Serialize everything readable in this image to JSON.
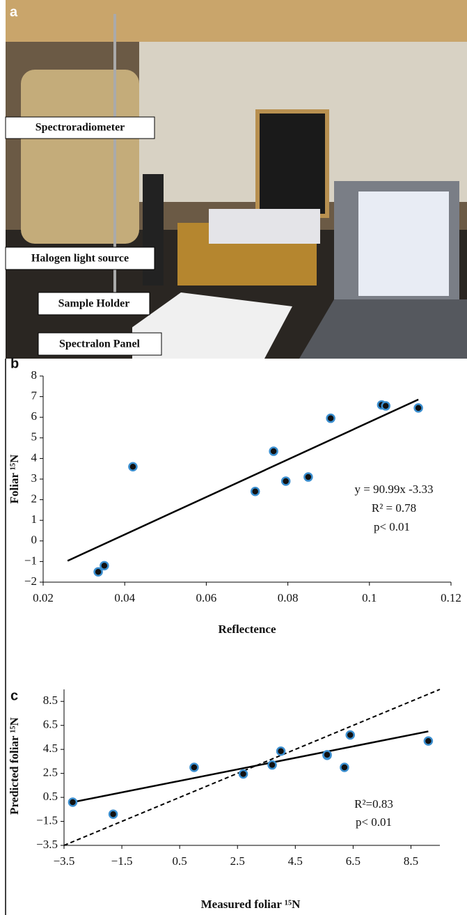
{
  "photo": {
    "panel_label": "a",
    "labels": [
      "Spectroradiometer",
      "Halogen light source",
      "Sample Holder",
      "Spectralon Panel"
    ]
  },
  "chart_data": [
    {
      "type": "scatter",
      "panel_label": "b",
      "x_label": "Reflectence",
      "y_label": "Foliar ¹⁵N",
      "color": "#3b8fd0",
      "x": [
        0.0335,
        0.035,
        0.042,
        0.072,
        0.0765,
        0.0795,
        0.085,
        0.0905,
        0.103,
        0.104,
        0.112
      ],
      "y": [
        -1.5,
        -1.2,
        3.6,
        2.4,
        4.35,
        2.9,
        3.1,
        5.95,
        6.6,
        6.55,
        6.45
      ],
      "fit_line": {
        "x": [
          0.026,
          0.112
        ],
        "y": [
          -0.964,
          6.859
        ]
      },
      "annotations": [
        "y = 90.99x -3.33",
        "R² = 0.78",
        "p< 0.01"
      ],
      "xlim": [
        0.02,
        0.12
      ],
      "xticks": [
        0.02,
        0.04,
        0.06,
        0.08,
        0.1,
        0.12
      ],
      "ylim": [
        -2,
        8
      ],
      "yticks": [
        {
          "value": -2,
          "label": "−2"
        },
        {
          "value": -1,
          "label": "−1"
        },
        0,
        1,
        2,
        3,
        4,
        5,
        6,
        7,
        8
      ]
    },
    {
      "type": "scatter",
      "panel_label": "c",
      "x_label": "Measured foliar ¹⁵N",
      "y_label": "Predicted foliar ¹⁵N",
      "color": "#3b8fd0",
      "x": [
        -3.2,
        -1.8,
        1.0,
        2.7,
        3.7,
        4.0,
        5.6,
        5.6,
        6.2,
        6.4,
        9.1
      ],
      "y": [
        0.1,
        -0.9,
        3.0,
        2.45,
        3.2,
        4.35,
        4.0,
        4.05,
        3.0,
        5.7,
        5.2
      ],
      "fit_line": {
        "x": [
          -3.2,
          9.1
        ],
        "y": [
          0.1,
          6.0
        ]
      },
      "reference_line": {
        "x": [
          -3.5,
          9.5
        ],
        "y": [
          -3.5,
          9.5
        ]
      },
      "annotations": [
        "R²=0.83",
        "p< 0.01"
      ],
      "xlim": [
        -3.5,
        9.5
      ],
      "xticks": [
        {
          "value": -3.5,
          "label": "−3.5"
        },
        {
          "value": -1.5,
          "label": "−1.5"
        },
        0.5,
        2.5,
        4.5,
        6.5,
        8.5
      ],
      "ylim": [
        -3.5,
        9.5
      ],
      "yticks": [
        {
          "value": -3.5,
          "label": "−3.5"
        },
        {
          "value": -1.5,
          "label": "−1.5"
        },
        0.5,
        2.5,
        4.5,
        6.5,
        8.5
      ]
    }
  ]
}
